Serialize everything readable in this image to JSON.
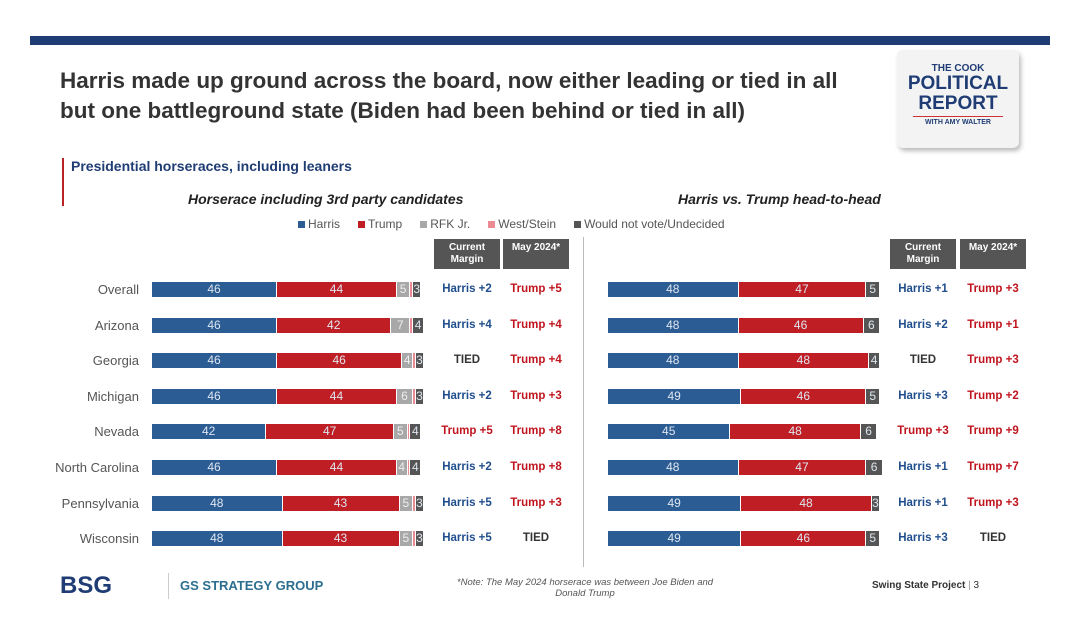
{
  "title": "Harris made up ground across the board, now either leading or tied in all but one battleground state (Biden had been behind or tied in all)",
  "logo": {
    "line1": "THE COOK",
    "line2": "POLITICAL",
    "line3": "REPORT",
    "line4": "WITH AMY WALTER"
  },
  "subheading": "Presidential horseraces, including leaners",
  "colors": {
    "harris": "#2b5c94",
    "trump": "#be1e24",
    "rfk": "#a8a8a8",
    "west_stein": "#ec8a94",
    "undecided": "#555555",
    "harris_text": "#1f4e8c",
    "trump_text": "#c0151e"
  },
  "legend": [
    {
      "label": "Harris",
      "color": "#2b5c94"
    },
    {
      "label": "Trump",
      "color": "#be1e24"
    },
    {
      "label": "RFK Jr.",
      "color": "#a8a8a8"
    },
    {
      "label": "West/Stein",
      "color": "#ec8a94"
    },
    {
      "label": "Would not vote/Undecided",
      "color": "#555555"
    }
  ],
  "headers": {
    "current": "Current Margin",
    "may": "May 2024*"
  },
  "chart_data": [
    {
      "type": "bar",
      "stacked": true,
      "orientation": "horizontal",
      "title": "Horserace including 3rd party candidates",
      "categories": [
        "Overall",
        "Arizona",
        "Georgia",
        "Michigan",
        "Nevada",
        "North Carolina",
        "Pennsylvania",
        "Wisconsin"
      ],
      "series": [
        {
          "name": "Harris",
          "values": [
            46,
            46,
            46,
            46,
            42,
            46,
            48,
            48
          ]
        },
        {
          "name": "Trump",
          "values": [
            44,
            42,
            46,
            44,
            47,
            44,
            43,
            43
          ]
        },
        {
          "name": "RFK Jr.",
          "values": [
            5,
            7,
            4,
            6,
            5,
            4,
            5,
            5
          ]
        },
        {
          "name": "West/Stein",
          "values": [
            1,
            1,
            1,
            1,
            1,
            1,
            1,
            1
          ]
        },
        {
          "name": "Would not vote/Undecided",
          "values": [
            3,
            4,
            3,
            3,
            4,
            4,
            3,
            3
          ]
        }
      ],
      "current_margin": [
        "Harris +2",
        "Harris +4",
        "TIED",
        "Harris +2",
        "Trump +5",
        "Harris +2",
        "Harris +5",
        "Harris +5"
      ],
      "may_2024": [
        "Trump +5",
        "Trump +4",
        "Trump +4",
        "Trump +3",
        "Trump +8",
        "Trump +8",
        "Trump +3",
        "TIED"
      ]
    },
    {
      "type": "bar",
      "stacked": true,
      "orientation": "horizontal",
      "title": "Harris vs. Trump head-to-head",
      "categories": [
        "Overall",
        "Arizona",
        "Georgia",
        "Michigan",
        "Nevada",
        "North Carolina",
        "Pennsylvania",
        "Wisconsin"
      ],
      "series": [
        {
          "name": "Harris",
          "values": [
            48,
            48,
            48,
            49,
            45,
            48,
            49,
            49
          ]
        },
        {
          "name": "Trump",
          "values": [
            47,
            46,
            48,
            46,
            48,
            47,
            48,
            46
          ]
        },
        {
          "name": "Would not vote/Undecided",
          "values": [
            5,
            6,
            4,
            5,
            6,
            6,
            3,
            5
          ]
        }
      ],
      "current_margin": [
        "Harris +1",
        "Harris +2",
        "TIED",
        "Harris +3",
        "Trump +3",
        "Harris +1",
        "Harris +1",
        "Harris +3"
      ],
      "may_2024": [
        "Trump +3",
        "Trump +1",
        "Trump +3",
        "Trump +2",
        "Trump +9",
        "Trump +7",
        "Trump +3",
        "TIED"
      ]
    }
  ],
  "footer": {
    "bsg": "BSG",
    "gs": "GS STRATEGY GROUP",
    "note": "*Note: The May 2024 horserace was between Joe Biden and Donald Trump",
    "project": "Swing State Project",
    "page": "3"
  }
}
